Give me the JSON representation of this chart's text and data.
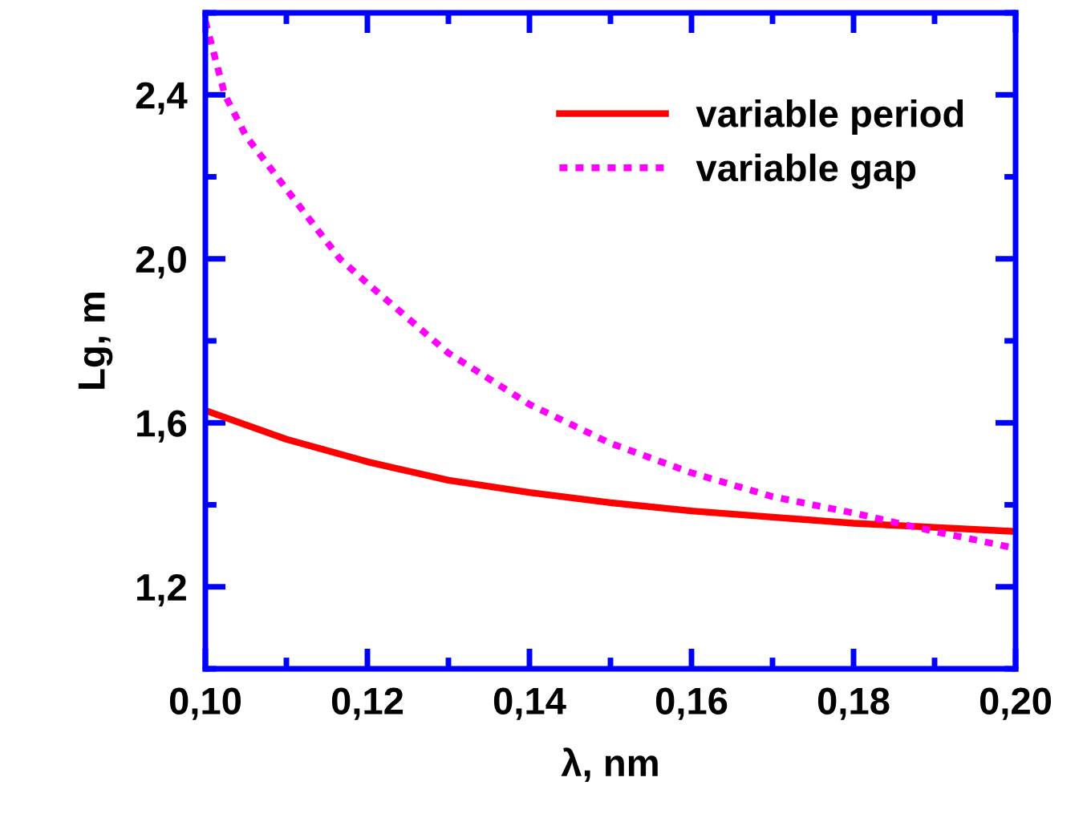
{
  "chart_data": {
    "type": "line",
    "xlabel": "λ, nm",
    "ylabel": "Lg, m",
    "xlim": [
      0.1,
      0.2
    ],
    "ylim": [
      1.0,
      2.6
    ],
    "xticks": [
      {
        "value": 0.1,
        "label": "0,10"
      },
      {
        "value": 0.12,
        "label": "0,12"
      },
      {
        "value": 0.14,
        "label": "0,14"
      },
      {
        "value": 0.16,
        "label": "0,16"
      },
      {
        "value": 0.18,
        "label": "0,18"
      },
      {
        "value": 0.2,
        "label": "0,20"
      }
    ],
    "yticks": [
      {
        "value": 1.2,
        "label": "1,2"
      },
      {
        "value": 1.6,
        "label": "1,6"
      },
      {
        "value": 2.0,
        "label": "2,0"
      },
      {
        "value": 2.4,
        "label": "2,4"
      }
    ],
    "grid": false,
    "legend": "top right",
    "marker": "none",
    "series": [
      {
        "name": "variable period",
        "color": "#ff0000",
        "line_style": "solid",
        "x": [
          0.1,
          0.11,
          0.12,
          0.13,
          0.14,
          0.15,
          0.16,
          0.17,
          0.18,
          0.19,
          0.2
        ],
        "values": [
          1.63,
          1.56,
          1.505,
          1.46,
          1.43,
          1.405,
          1.385,
          1.37,
          1.355,
          1.345,
          1.335
        ]
      },
      {
        "name": "variable gap",
        "color": "#ff00ff",
        "line_style": "dotted",
        "x": [
          0.1,
          0.1024,
          0.105,
          0.11,
          0.1166,
          0.12,
          0.13,
          0.14,
          0.15,
          0.16,
          0.17,
          0.18,
          0.19,
          0.2
        ],
        "values": [
          2.58,
          2.4,
          2.3,
          2.17,
          2.0,
          1.94,
          1.77,
          1.645,
          1.55,
          1.478,
          1.42,
          1.38,
          1.335,
          1.294
        ]
      }
    ]
  }
}
